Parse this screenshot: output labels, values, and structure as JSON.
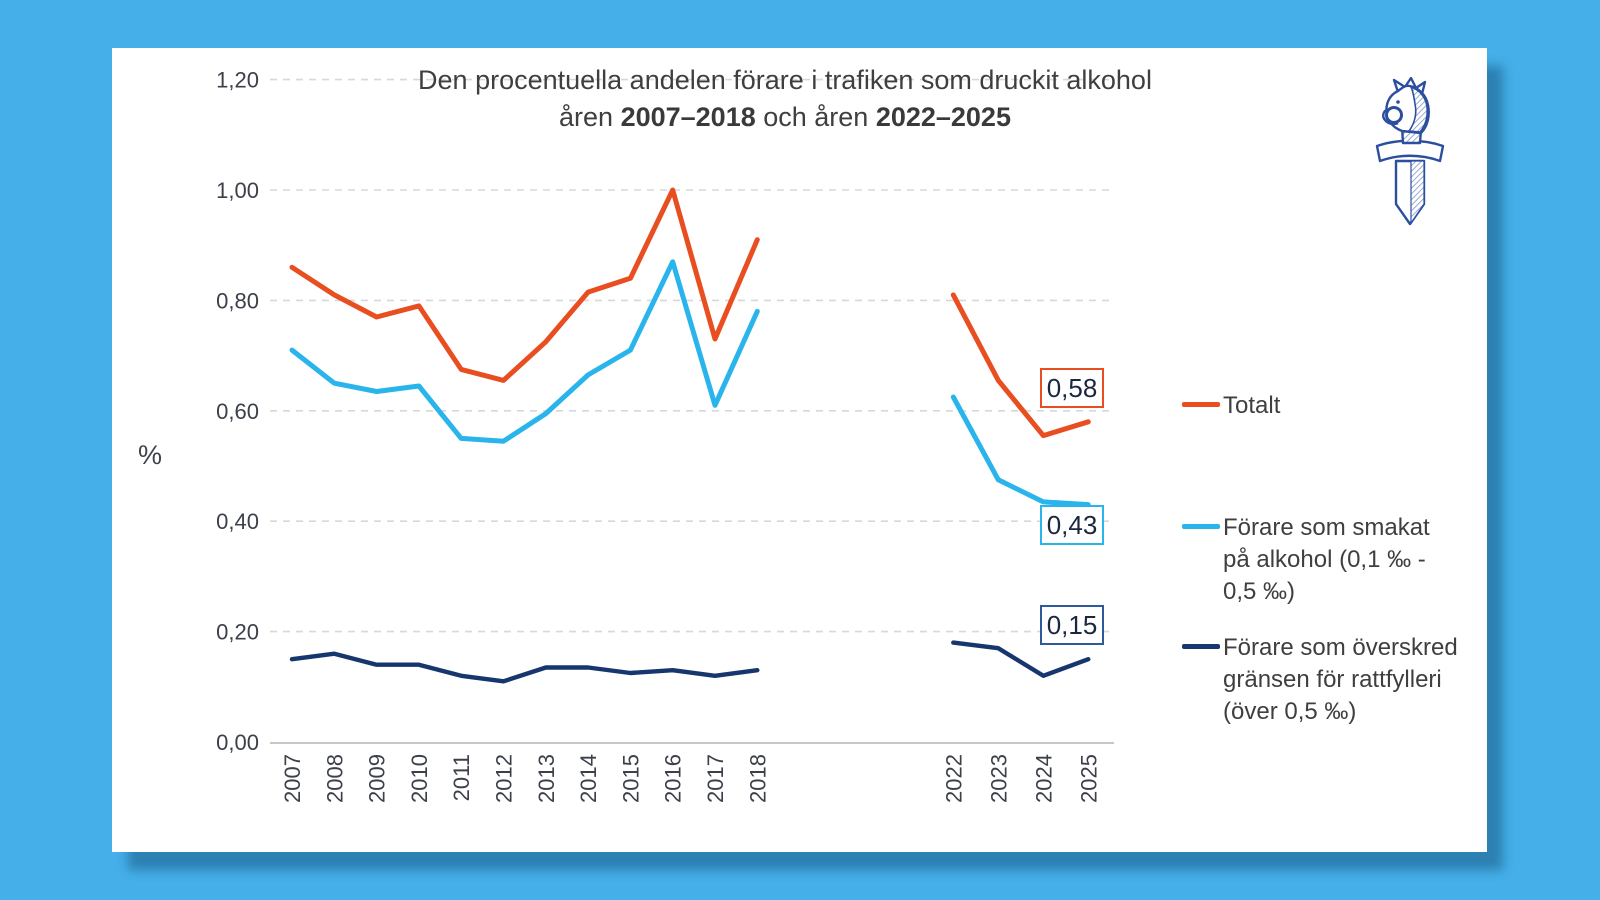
{
  "page": {
    "background_color": "#45AFE9",
    "panel_color": "#FFFFFF"
  },
  "title": {
    "line1": "Den procentuella andelen förare i trafiken som druckit alkohol",
    "line2_prefix": "åren ",
    "line2_bold1": "2007–2018",
    "line2_mid": " och åren ",
    "line2_bold2": "2022–2025"
  },
  "y_axis": {
    "unit_label": "%",
    "tick_labels": [
      "1,20",
      "1,00",
      "0,80",
      "0,60",
      "0,40",
      "0,20",
      "0,00"
    ],
    "tick_values": [
      1.2,
      1.0,
      0.8,
      0.6,
      0.4,
      0.2,
      0.0
    ]
  },
  "chart_data": {
    "type": "line",
    "title": "Den procentuella andelen förare i trafiken som druckit alkohol åren 2007–2018 och åren 2022–2025",
    "ylabel": "%",
    "ylim": [
      0.0,
      1.2
    ],
    "grid": "horizontal dashed",
    "legend_position": "right",
    "x_segments": [
      {
        "labels": [
          "2007",
          "2008",
          "2009",
          "2010",
          "2011",
          "2012",
          "2013",
          "2014",
          "2015",
          "2016",
          "2017",
          "2018"
        ]
      },
      {
        "labels": [
          "2022",
          "2023",
          "2024",
          "2025"
        ]
      }
    ],
    "series": [
      {
        "name": "Totalt",
        "color": "#E94E21",
        "segments": [
          [
            0.86,
            0.81,
            0.77,
            0.79,
            0.675,
            0.655,
            0.725,
            0.815,
            0.84,
            1.0,
            0.73,
            0.91
          ],
          [
            0.81,
            0.655,
            0.555,
            0.58
          ]
        ],
        "end_label": "0,58"
      },
      {
        "name": "Förare som smakat på alkohol (0,1 ‰ - 0,5 ‰)",
        "color": "#29B5EC",
        "segments": [
          [
            0.71,
            0.65,
            0.635,
            0.645,
            0.55,
            0.545,
            0.595,
            0.665,
            0.71,
            0.87,
            0.61,
            0.78
          ],
          [
            0.625,
            0.475,
            0.435,
            0.43
          ]
        ],
        "end_label": "0,43"
      },
      {
        "name": "Förare som överskred gränsen för rattfylleri (över 0,5 ‰)",
        "color": "#17366E",
        "segments": [
          [
            0.15,
            0.16,
            0.14,
            0.14,
            0.12,
            0.11,
            0.135,
            0.135,
            0.125,
            0.13,
            0.12,
            0.13
          ],
          [
            0.18,
            0.17,
            0.12,
            0.15
          ]
        ],
        "end_label": "0,15"
      }
    ]
  },
  "legend": {
    "items": [
      {
        "label": "Totalt",
        "color": "#E94E21"
      },
      {
        "label": "Förare som smakat\npå alkohol (0,1 ‰ -\n0,5 ‰)",
        "color": "#29B5EC"
      },
      {
        "label": "Förare som överskred\ngränsen för rattfylleri\n(över 0,5 ‰)",
        "color": "#17366E"
      }
    ]
  },
  "callouts": [
    {
      "text": "0,58",
      "border_color": "#E94E21"
    },
    {
      "text": "0,43",
      "border_color": "#29B5EC"
    },
    {
      "text": "0,15",
      "border_color": "#2E5A9D"
    }
  ],
  "logo": {
    "name": "finnish-police-sword-emblem",
    "color": "#2C4E9E"
  }
}
